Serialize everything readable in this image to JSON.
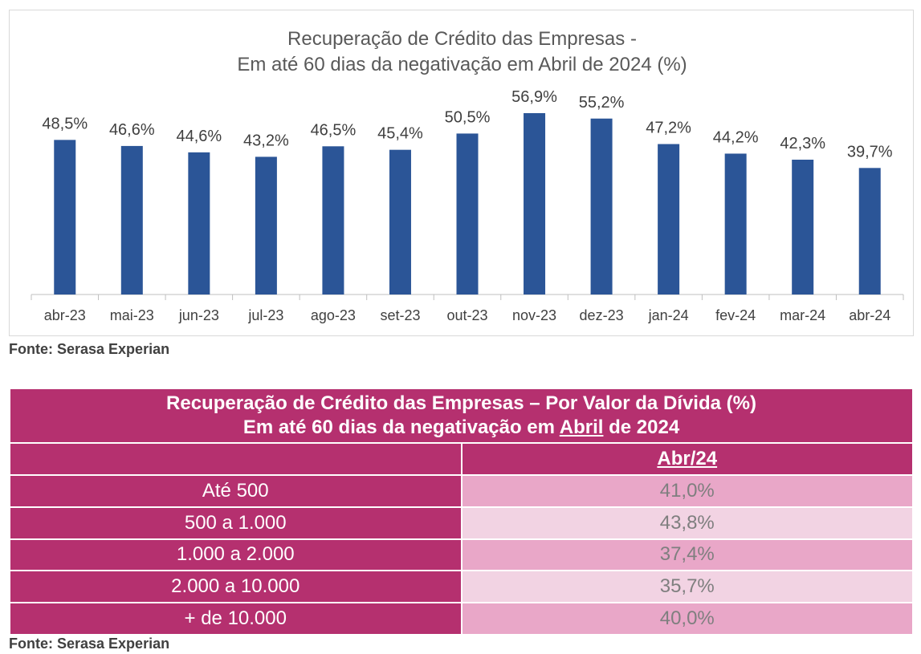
{
  "chart": {
    "title_line1": "Recuperação de Crédito das Empresas -",
    "title_line2": "Em até 60 dias da negativação em Abril de 2024 (%)",
    "source": "Fonte: Serasa Experian"
  },
  "chart_data": {
    "type": "bar",
    "title": "Recuperação de Crédito das Empresas - Em até 60 dias da negativação em Abril de 2024 (%)",
    "categories": [
      "abr-23",
      "mai-23",
      "jun-23",
      "jul-23",
      "ago-23",
      "set-23",
      "out-23",
      "nov-23",
      "dez-23",
      "jan-24",
      "fev-24",
      "mar-24",
      "abr-24"
    ],
    "values": [
      48.5,
      46.6,
      44.6,
      43.2,
      46.5,
      45.4,
      50.5,
      56.9,
      55.2,
      47.2,
      44.2,
      42.3,
      39.7
    ],
    "labels": [
      "48,5%",
      "46,6%",
      "44,6%",
      "43,2%",
      "46,5%",
      "45,4%",
      "50,5%",
      "56,9%",
      "55,2%",
      "47,2%",
      "44,2%",
      "42,3%",
      "39,7%"
    ],
    "ylim": [
      0,
      60
    ],
    "grid": false,
    "colors": {
      "bar": "#2b5597"
    }
  },
  "table": {
    "title_pre": "Recuperação de Crédito das Empresas – Por Valor da Dívida (%)",
    "title_line2_a": "Em até 60 dias da negativação em ",
    "title_line2_b": "Abril",
    "title_line2_c": " de 2024",
    "column": "Abr/24",
    "rows": [
      {
        "label": "Até 500",
        "value": "41,0%"
      },
      {
        "label": "500 a 1.000",
        "value": "43,8%"
      },
      {
        "label": "1.000 a 2.000",
        "value": "37,4%"
      },
      {
        "label": "2.000 a 10.000",
        "value": "35,7%"
      },
      {
        "label": "+ de 10.000",
        "value": "40,0%"
      }
    ],
    "source": "Fonte: Serasa Experian",
    "colors": {
      "header": "#b5306f",
      "cell_a": "#e9a7c8",
      "cell_b": "#f2d3e3"
    }
  }
}
